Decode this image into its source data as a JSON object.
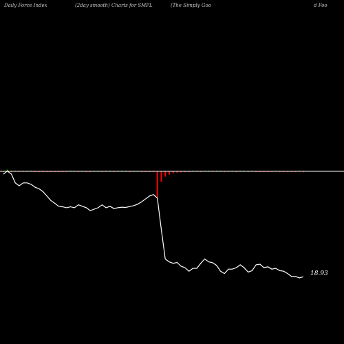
{
  "header": {
    "left": "Daily Force  Index",
    "middle": "(2day smooth) Charts for SMPL",
    "right_a": "(The  Simply Goo",
    "right_b": "d Foo"
  },
  "chart_data": {
    "type": "line",
    "title": "Daily Force  Index (2day smooth) Charts for SMPL (The  Simply Good Foo",
    "last_value_label": "18.93",
    "colors": {
      "background": "#000000",
      "price_line": "#ffffff",
      "zero_line": "#ffffff",
      "positive_bar": "#00cc00",
      "negative_bar": "#ff0000"
    },
    "series": [
      {
        "values": [
          54.0,
          55.0,
          54.0,
          51.0,
          50.0,
          51.0,
          51.0,
          50.5,
          49.5,
          49.0,
          48.0,
          46.5,
          45.0,
          44.0,
          43.0,
          42.8,
          42.5,
          42.8,
          42.5,
          43.5,
          43.0,
          42.5,
          41.5,
          42.0,
          42.5,
          43.5,
          42.5,
          43.0,
          42.2,
          42.5,
          42.7,
          42.6,
          42.9,
          43.2,
          43.7,
          44.5,
          45.5,
          46.5,
          47.0,
          45.8,
          35.0,
          25.0,
          24.0,
          23.5,
          23.8,
          22.5,
          22.0,
          20.8,
          21.8,
          21.8,
          23.5,
          25.0,
          24.0,
          23.7,
          22.8,
          20.8,
          20.0,
          21.5,
          21.5,
          22.0,
          23.0,
          22.0,
          20.5,
          21.0,
          23.0,
          23.2,
          22.0,
          22.3,
          21.5,
          21.8,
          21.0,
          20.8,
          20.0,
          19.0,
          19.0,
          18.5,
          18.93
        ]
      }
    ],
    "force_index": [
      -0.6,
      2.5,
      -0.8,
      0.3,
      -0.4,
      0.2,
      -0.3,
      0.2,
      -0.2,
      -0.3,
      -0.3,
      -0.4,
      -0.2,
      -0.4,
      -0.3,
      -0.2,
      -0.3,
      0.3,
      0.2,
      -0.5,
      0.5,
      -0.2,
      -0.6,
      0.4,
      0.3,
      -0.3,
      0.2,
      0.3,
      -0.4,
      0.3,
      0.5,
      0.3,
      -0.2,
      0.2,
      0.3,
      -0.4,
      -0.5,
      -0.6,
      -0.5,
      -40.0,
      -16.0,
      -8.0,
      -5.0,
      -3.0,
      -2.0,
      -1.5,
      -1.0,
      -0.5,
      0.3,
      0.5,
      -0.5,
      0.3,
      0.4,
      -0.6,
      0.3,
      0.3,
      -0.5,
      0.4,
      0.5,
      -0.4,
      0.3,
      0.3,
      -0.5,
      0.4,
      -0.3,
      -0.3,
      -0.4,
      -0.3,
      -0.2,
      0.2,
      -0.2,
      -0.3,
      -0.2,
      -0.2,
      -0.2,
      0.2,
      -0.1
    ]
  }
}
